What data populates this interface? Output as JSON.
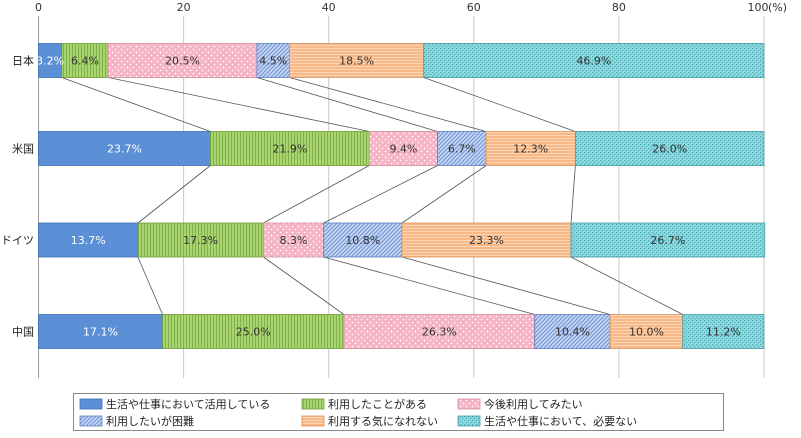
{
  "chart_data": {
    "type": "bar",
    "orientation": "horizontal",
    "stacked": true,
    "x_unit_label": "(%)",
    "xlim": [
      0,
      100
    ],
    "xticks": [
      0,
      20,
      40,
      60,
      80,
      100
    ],
    "grid": true,
    "legend_position": "bottom",
    "categories": [
      "日本",
      "米国",
      "ドイツ",
      "中国"
    ],
    "series": [
      {
        "name": "生活や仕事において活用している",
        "color": "#5b8fd6",
        "pattern": "solid",
        "values": [
          3.2,
          23.7,
          13.7,
          17.1
        ]
      },
      {
        "name": "利用したことがある",
        "color": "#a9d46f",
        "pattern": "vlines",
        "values": [
          6.4,
          21.9,
          17.3,
          25.0
        ]
      },
      {
        "name": "今後利用してみたい",
        "color": "#f5b3c4",
        "pattern": "dots",
        "values": [
          20.5,
          9.4,
          8.3,
          26.3
        ]
      },
      {
        "name": "利用したいが困難",
        "color": "#a8c0ea",
        "pattern": "diag",
        "values": [
          4.5,
          6.7,
          10.8,
          10.4
        ]
      },
      {
        "name": "利用する気になれない",
        "color": "#f8b987",
        "pattern": "hlines",
        "values": [
          18.5,
          12.3,
          23.3,
          10.0
        ]
      },
      {
        "name": "生活や仕事において、必要ない",
        "color": "#7fd0d6",
        "pattern": "grid",
        "values": [
          46.9,
          26.0,
          26.7,
          11.2
        ]
      }
    ],
    "data_labels": [
      [
        "3.2%",
        "6.4%",
        "20.5%",
        "4.5%",
        "18.5%",
        "46.9%"
      ],
      [
        "23.7%",
        "21.9%",
        "9.4%",
        "6.7%",
        "12.3%",
        "26.0%"
      ],
      [
        "13.7%",
        "17.3%",
        "8.3%",
        "10.8%",
        "23.3%",
        "26.7%"
      ],
      [
        "17.1%",
        "25.0%",
        "26.3%",
        "10.4%",
        "10.0%",
        "11.2%"
      ]
    ]
  }
}
